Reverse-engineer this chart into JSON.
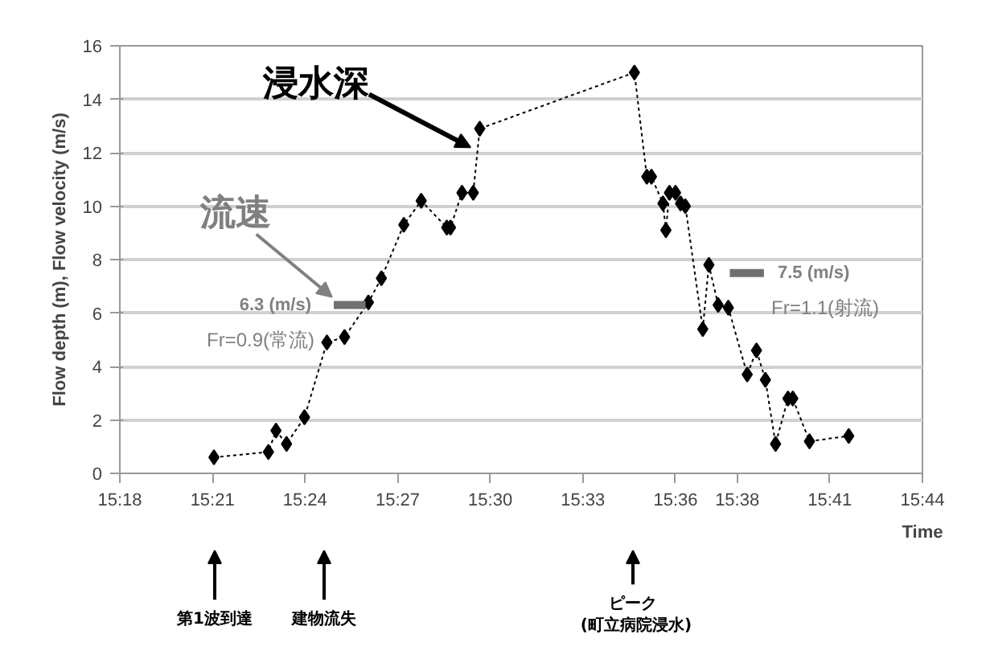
{
  "chart_data": {
    "type": "line",
    "xlabel": "Time",
    "ylabel": "Flow depth (m), Flow velocity (m/s)",
    "xlim": [
      15.3,
      15.7333
    ],
    "ylim": [
      0,
      16
    ],
    "xticks": [
      {
        "value": 15.3,
        "label": "15:18"
      },
      {
        "value": 15.35,
        "label": "15:21"
      },
      {
        "value": 15.4,
        "label": "15:24"
      },
      {
        "value": 15.45,
        "label": "15:27"
      },
      {
        "value": 15.5,
        "label": "15:30"
      },
      {
        "value": 15.55,
        "label": "15:33"
      },
      {
        "value": 15.6,
        "label": "15:36"
      },
      {
        "value": 15.6333,
        "label": "15:38"
      },
      {
        "value": 15.6833,
        "label": "15:41"
      },
      {
        "value": 15.7333,
        "label": "15:44"
      }
    ],
    "yticks": [
      0,
      2,
      4,
      6,
      8,
      10,
      12,
      14,
      16
    ],
    "grid": "y",
    "marker": "diamond",
    "line_style": "dashed",
    "series": [
      {
        "color": "#000000",
        "x": [
          15.3508,
          15.3802,
          15.3843,
          15.39,
          15.3997,
          15.4118,
          15.4213,
          15.4342,
          15.4412,
          15.4533,
          15.4627,
          15.4765,
          15.4785,
          15.4847,
          15.4908,
          15.4943,
          15.5778,
          15.5845,
          15.587,
          15.5932,
          15.5948,
          15.5967,
          15.6,
          15.6027,
          15.6053,
          15.6147,
          15.618,
          15.623,
          15.6285,
          15.6387,
          15.6437,
          15.6485,
          15.654,
          15.6607,
          15.6633,
          15.6723,
          15.6935
        ],
        "values": [
          0.6,
          0.8,
          1.6,
          1.1,
          2.1,
          4.9,
          5.1,
          6.4,
          7.3,
          9.3,
          10.2,
          9.2,
          9.2,
          10.5,
          10.5,
          12.9,
          15.0,
          11.1,
          11.1,
          10.1,
          9.1,
          10.5,
          10.5,
          10.1,
          10.0,
          5.4,
          7.8,
          6.3,
          6.2,
          3.7,
          4.6,
          3.5,
          1.1,
          2.8,
          2.8,
          1.2,
          1.4
        ]
      },
      {
        "type": "line",
        "color": "#707070",
        "marker": "none",
        "line_style": "solid",
        "x": [
          15.4155,
          15.4327,
          15.53,
          15.6293,
          15.6477
        ],
        "values": [
          6.3,
          6.3,
          null,
          7.5,
          7.5
        ]
      }
    ],
    "annotations": [
      {
        "text": "浸水深",
        "x": 15.4893,
        "y": 12.2
      },
      {
        "text": "流速",
        "x": 15.4145,
        "y": 6.6
      },
      "6.3 (m/s)",
      "Fr=0.9(常流)",
      "7.5 (m/s)",
      "Fr=1.1(射流)",
      "第1波到達",
      "建物流失",
      "ピーク",
      "(町立病院浸水)"
    ]
  }
}
